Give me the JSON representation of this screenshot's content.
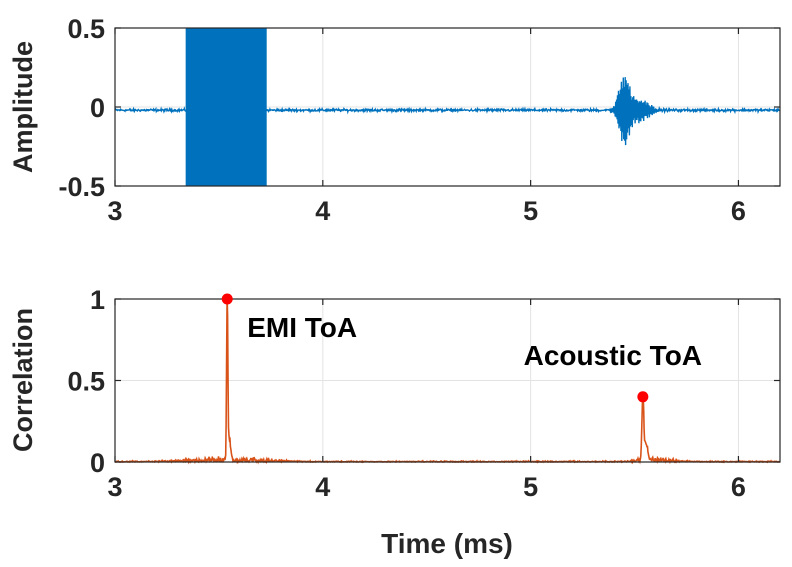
{
  "chart_data": [
    {
      "type": "line",
      "xlabel": "",
      "ylabel": "Amplitude",
      "xlim": [
        3,
        6.2
      ],
      "ylim": [
        -0.5,
        0.5
      ],
      "xticks": [
        3,
        4,
        5,
        6
      ],
      "yticks": [
        -0.5,
        0,
        0.5
      ],
      "xtick_labels": [
        "3",
        "4",
        "5",
        "6"
      ],
      "ytick_labels": [
        "-0.5",
        "0",
        "0.5"
      ],
      "grid": true,
      "color": "#0072BD",
      "baseline": -0.02,
      "noise_amplitude": 0.012,
      "emi_burst": {
        "x_start": 3.34,
        "x_end": 3.73,
        "amplitude": 0.5
      },
      "acoustic_burst": {
        "x_center": 5.45,
        "peak_amplitude": 0.22,
        "x_start": 5.36,
        "x_end": 5.62
      }
    },
    {
      "type": "line",
      "xlabel": "Time (ms)",
      "ylabel": "Correlation",
      "xlim": [
        3,
        6.2
      ],
      "ylim": [
        0,
        1
      ],
      "xticks": [
        3,
        4,
        5,
        6
      ],
      "yticks": [
        0,
        0.5,
        1
      ],
      "xtick_labels": [
        "3",
        "4",
        "5",
        "6"
      ],
      "ytick_labels": [
        "0",
        "0.5",
        "1"
      ],
      "grid": true,
      "color": "#D95319",
      "marker_color": "#FF0000",
      "peaks": [
        {
          "x": 3.54,
          "y": 1.0,
          "label": "EMI ToA"
        },
        {
          "x": 5.54,
          "y": 0.4,
          "label": "Acoustic ToA"
        }
      ]
    }
  ]
}
